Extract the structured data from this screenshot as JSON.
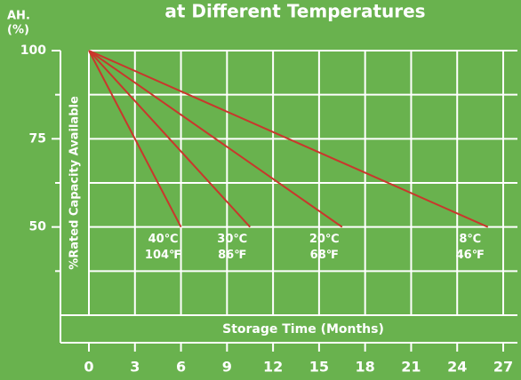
{
  "chart_data": {
    "type": "line",
    "title": "at Different Temperatures",
    "y_unit": [
      "AH.",
      "(%)"
    ],
    "y_label": "%Rated Capacity Available",
    "x_label": "Storage Time (Months)",
    "xlim": [
      0,
      27
    ],
    "xticks": [
      0,
      3,
      6,
      9,
      12,
      15,
      18,
      21,
      24,
      27
    ],
    "ylim": [
      25,
      100
    ],
    "yticks": [
      50,
      75,
      100
    ],
    "y_minor_ticks": [
      37.5,
      62.5,
      87.5
    ],
    "grid": true,
    "series": [
      {
        "labels": [
          "40℃",
          "104℉"
        ],
        "color": "#c9372c",
        "x": [
          0,
          6
        ],
        "values": [
          100,
          50
        ]
      },
      {
        "labels": [
          "30℃",
          "86℉"
        ],
        "color": "#c9372c",
        "x": [
          0,
          10.5
        ],
        "values": [
          100,
          50
        ]
      },
      {
        "labels": [
          "20℃",
          "68℉"
        ],
        "color": "#c9372c",
        "x": [
          0,
          16.5
        ],
        "values": [
          100,
          50
        ]
      },
      {
        "labels": [
          "8℃",
          "46℉"
        ],
        "color": "#c9372c",
        "x": [
          0,
          26
        ],
        "values": [
          100,
          50
        ]
      }
    ]
  }
}
